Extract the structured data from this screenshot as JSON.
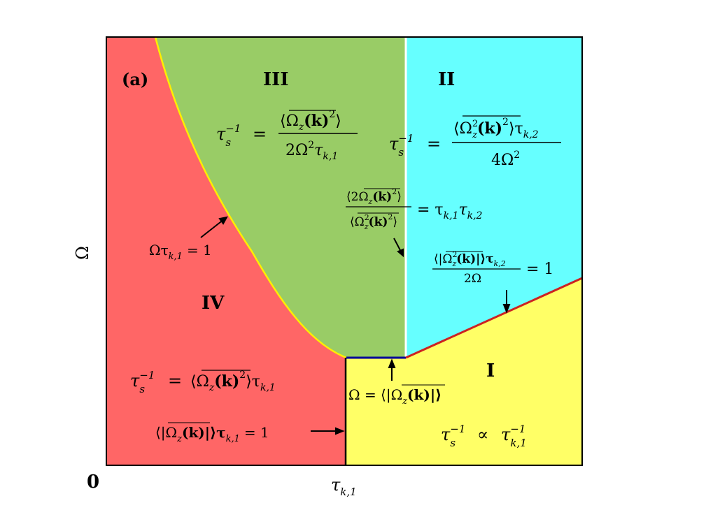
{
  "panel_label": "(a)",
  "origin_label": "0",
  "axes": {
    "x_label": "τ",
    "x_label_sub": "k,1",
    "y_label": "Ω"
  },
  "regions": {
    "I": {
      "name": "I",
      "color": "#ffff66"
    },
    "II": {
      "name": "II",
      "color": "#66ffff"
    },
    "III": {
      "name": "III",
      "color": "#99cc66"
    },
    "IV": {
      "name": "IV",
      "color": "#ff6666"
    }
  },
  "boundary_colors": {
    "region4_curve": "#ffee00",
    "blue_segment": "#000099",
    "red_line": "#cc2222",
    "white_line": "#ffffff",
    "black_line": "#000000"
  },
  "formulas": {
    "III": {
      "lhs": "τ",
      "lhs_sup": "−1",
      "lhs_sub": "s",
      "eq": "=",
      "num": "⟨Ω",
      "num_sub": "z",
      "num_rest": "(k)",
      "num_sup": "2",
      "num_close": "⟩",
      "den": "2Ω",
      "den_sup": "2",
      "den_rest": "τ",
      "den_sub": "k,1"
    },
    "II": {
      "lhs": "τ",
      "lhs_sup": "−1",
      "lhs_sub": "s",
      "eq": "=",
      "num": "⟨Ω",
      "num_sub": "z",
      "num_sup_inner": "2",
      "num_rest": "(k)",
      "num_sup": "2",
      "num_close": "⟩τ",
      "num_tau_sub": "k,2",
      "den": "4Ω",
      "den_sup": "2"
    },
    "IV": {
      "lhs": "τ",
      "lhs_sup": "−1",
      "lhs_sub": "s",
      "eq": "=",
      "rhs": "⟨Ω",
      "rhs_sub": "z",
      "rhs_rest": "(k)",
      "rhs_sup": "2",
      "rhs_close": "⟩τ",
      "rhs_tau_sub": "k,1"
    },
    "I": {
      "lhs": "τ",
      "lhs_sup": "−1",
      "lhs_sub": "s",
      "rel": "∝",
      "rhs": "τ",
      "rhs_sup": "−1",
      "rhs_sub": "k,1"
    }
  },
  "annotations": {
    "curve_cond": {
      "pre": "Ωτ",
      "sub": "k,1",
      "post": "= 1"
    },
    "white_cond": {
      "num": "⟨2Ω",
      "num_sub": "z",
      "num_rest": "(k)",
      "num_sup": "2",
      "num_close": "⟩",
      "den": "⟨Ω",
      "den_sub": "z",
      "den_sup_inner": "2",
      "den_rest": "(k)",
      "den_sup": "2",
      "den_close": "⟩",
      "rhs": "= τ",
      "rhs_sub1": "k,1",
      "rhs_mid": "τ",
      "rhs_sub2": "k,2"
    },
    "red_cond": {
      "num": "⟨|Ω",
      "num_sub": "z",
      "num_sup_inner": "2",
      "num_rest": "(k)|⟩τ",
      "num_tau_sub": "k,2",
      "den": "2Ω",
      "rhs": "= 1"
    },
    "blue_cond": {
      "text": "Ω = ⟨|Ω",
      "sub": "z",
      "rest": "(k)|⟩"
    },
    "vertical_cond": {
      "text": "⟨|Ω",
      "sub": "z",
      "rest": "(k)|⟩τ",
      "tau_sub": "k,1",
      "post": "= 1"
    }
  }
}
